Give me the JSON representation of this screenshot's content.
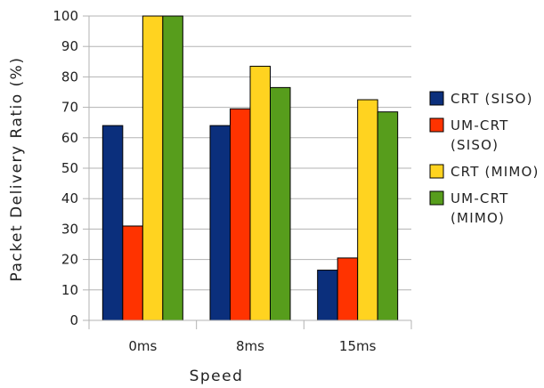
{
  "chart_data": {
    "type": "bar",
    "title": "",
    "xlabel": "Speed",
    "ylabel": "Packet Delivery Ratio (%)",
    "ylim": [
      0,
      100
    ],
    "yticks": [
      0,
      10,
      20,
      30,
      40,
      50,
      60,
      70,
      80,
      90,
      100
    ],
    "categories": [
      "0ms",
      "8ms",
      "15ms"
    ],
    "grid": true,
    "legend_position": "right",
    "series": [
      {
        "name": "CRT (SISO)",
        "name_lines": [
          "CRT (SISO)"
        ],
        "color": "#0b2f7c",
        "values": [
          64,
          64,
          16.5
        ]
      },
      {
        "name": "UM-CRT (SISO)",
        "name_lines": [
          "UM-CRT",
          "(SISO)"
        ],
        "color": "#ff3300",
        "values": [
          31,
          69.5,
          20.5
        ]
      },
      {
        "name": "CRT (MIMO)",
        "name_lines": [
          "CRT (MIMO)"
        ],
        "color": "#ffd320",
        "values": [
          100,
          83.5,
          72.5
        ]
      },
      {
        "name": "UM-CRT (MIMO)",
        "name_lines": [
          "UM-CRT",
          "(MIMO)"
        ],
        "color": "#579d1c",
        "values": [
          100,
          76.5,
          68.5
        ]
      }
    ]
  }
}
